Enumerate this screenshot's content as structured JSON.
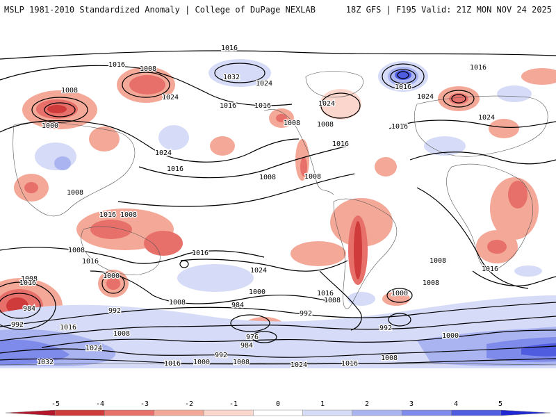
{
  "header": {
    "left": "MSLP 1981-2010 Standardized Anomaly | College of DuPage NEXLAB",
    "right": "18Z GFS | F195 Valid: 21Z MON NOV 24 2025"
  },
  "colorbar": {
    "ticks": [
      "-5",
      "-4",
      "-3",
      "-2",
      "-1",
      "0",
      "1",
      "2",
      "3",
      "4",
      "5"
    ],
    "colors": [
      "#b2182b",
      "#cf3a3a",
      "#e8706a",
      "#f4a898",
      "#fbd6cc",
      "#ffffff",
      "#d6dcf7",
      "#aab4f0",
      "#7f8bea",
      "#4f5ce0",
      "#2028d0"
    ]
  },
  "contour_labels": [
    {
      "text": "1016"
    },
    {
      "text": "1008"
    },
    {
      "text": "1032"
    },
    {
      "text": "1024"
    },
    {
      "text": "1016"
    },
    {
      "text": "1008"
    },
    {
      "text": "1000"
    },
    {
      "text": "1024"
    },
    {
      "text": "1016"
    },
    {
      "text": "1024"
    },
    {
      "text": "1016"
    },
    {
      "text": "1008"
    },
    {
      "text": "1008"
    },
    {
      "text": "1024"
    },
    {
      "text": "1016"
    },
    {
      "text": "1016"
    },
    {
      "text": "1024"
    },
    {
      "text": "1016"
    },
    {
      "text": "1016"
    },
    {
      "text": "1008"
    },
    {
      "text": "1024"
    },
    {
      "text": "1016"
    },
    {
      "text": "1008"
    },
    {
      "text": "1008"
    },
    {
      "text": "1016"
    },
    {
      "text": "1008"
    },
    {
      "text": "1008"
    },
    {
      "text": "1016"
    },
    {
      "text": "1016"
    },
    {
      "text": "1024"
    },
    {
      "text": "1016"
    },
    {
      "text": "1008"
    },
    {
      "text": "1008"
    },
    {
      "text": "1008"
    },
    {
      "text": "1016"
    },
    {
      "text": "1000"
    },
    {
      "text": "984"
    },
    {
      "text": "992"
    },
    {
      "text": "1008"
    },
    {
      "text": "984"
    },
    {
      "text": "1000"
    },
    {
      "text": "1016"
    },
    {
      "text": "1008"
    },
    {
      "text": "992"
    },
    {
      "text": "1000"
    },
    {
      "text": "992"
    },
    {
      "text": "992"
    },
    {
      "text": "1016"
    },
    {
      "text": "1024"
    },
    {
      "text": "1032"
    },
    {
      "text": "1008"
    },
    {
      "text": "976"
    },
    {
      "text": "984"
    },
    {
      "text": "992"
    },
    {
      "text": "1000"
    },
    {
      "text": "1016"
    },
    {
      "text": "1008"
    },
    {
      "text": "1024"
    },
    {
      "text": "1016"
    },
    {
      "text": "1008"
    },
    {
      "text": "1000"
    }
  ]
}
